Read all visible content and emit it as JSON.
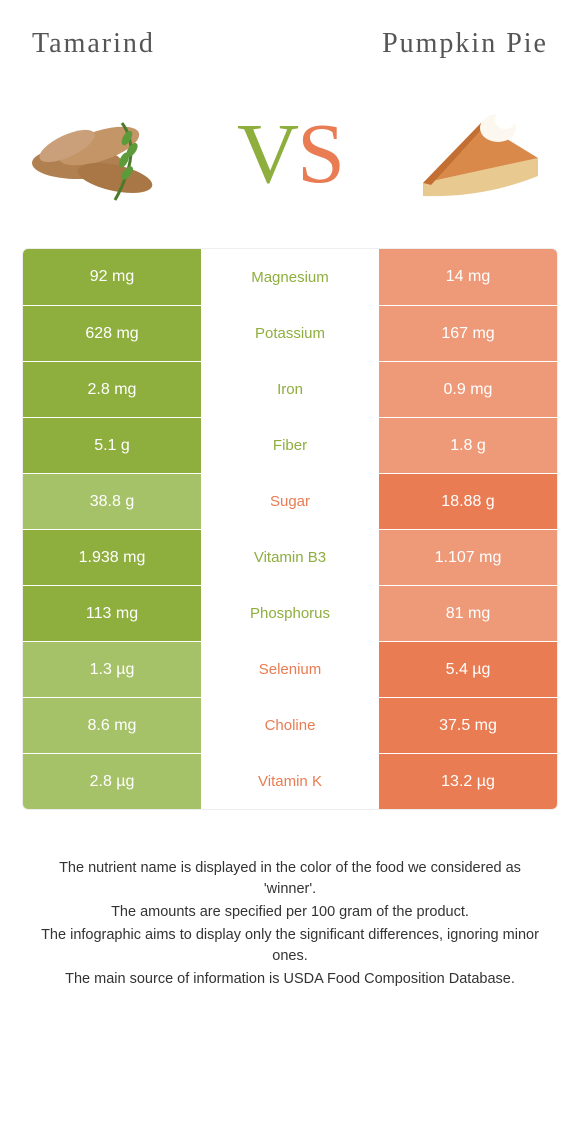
{
  "colors": {
    "left": "#8eae3e",
    "right": "#e97c52",
    "left_dim": "#a6c268",
    "right_dim": "#ee9a79",
    "bg": "#ffffff"
  },
  "titles": {
    "left": "Tamarind",
    "right": "Pumpkin pie"
  },
  "vs": {
    "v": "V",
    "s": "S"
  },
  "rows": [
    {
      "nutrient": "Magnesium",
      "left": "92 mg",
      "right": "14 mg",
      "winner": "left"
    },
    {
      "nutrient": "Potassium",
      "left": "628 mg",
      "right": "167 mg",
      "winner": "left"
    },
    {
      "nutrient": "Iron",
      "left": "2.8 mg",
      "right": "0.9 mg",
      "winner": "left"
    },
    {
      "nutrient": "Fiber",
      "left": "5.1 g",
      "right": "1.8 g",
      "winner": "left"
    },
    {
      "nutrient": "Sugar",
      "left": "38.8 g",
      "right": "18.88 g",
      "winner": "right"
    },
    {
      "nutrient": "Vitamin B3",
      "left": "1.938 mg",
      "right": "1.107 mg",
      "winner": "left"
    },
    {
      "nutrient": "Phosphorus",
      "left": "113 mg",
      "right": "81 mg",
      "winner": "left"
    },
    {
      "nutrient": "Selenium",
      "left": "1.3 µg",
      "right": "5.4 µg",
      "winner": "right"
    },
    {
      "nutrient": "Choline",
      "left": "8.6 mg",
      "right": "37.5 mg",
      "winner": "right"
    },
    {
      "nutrient": "Vitamin K",
      "left": "2.8 µg",
      "right": "13.2 µg",
      "winner": "right"
    }
  ],
  "footer": [
    "The nutrient name is displayed in the color of the food we considered as 'winner'.",
    "The amounts are specified per 100 gram of the product.",
    "The infographic aims to display only the significant differences, ignoring minor ones.",
    "The main source of information is USDA Food Composition Database."
  ]
}
